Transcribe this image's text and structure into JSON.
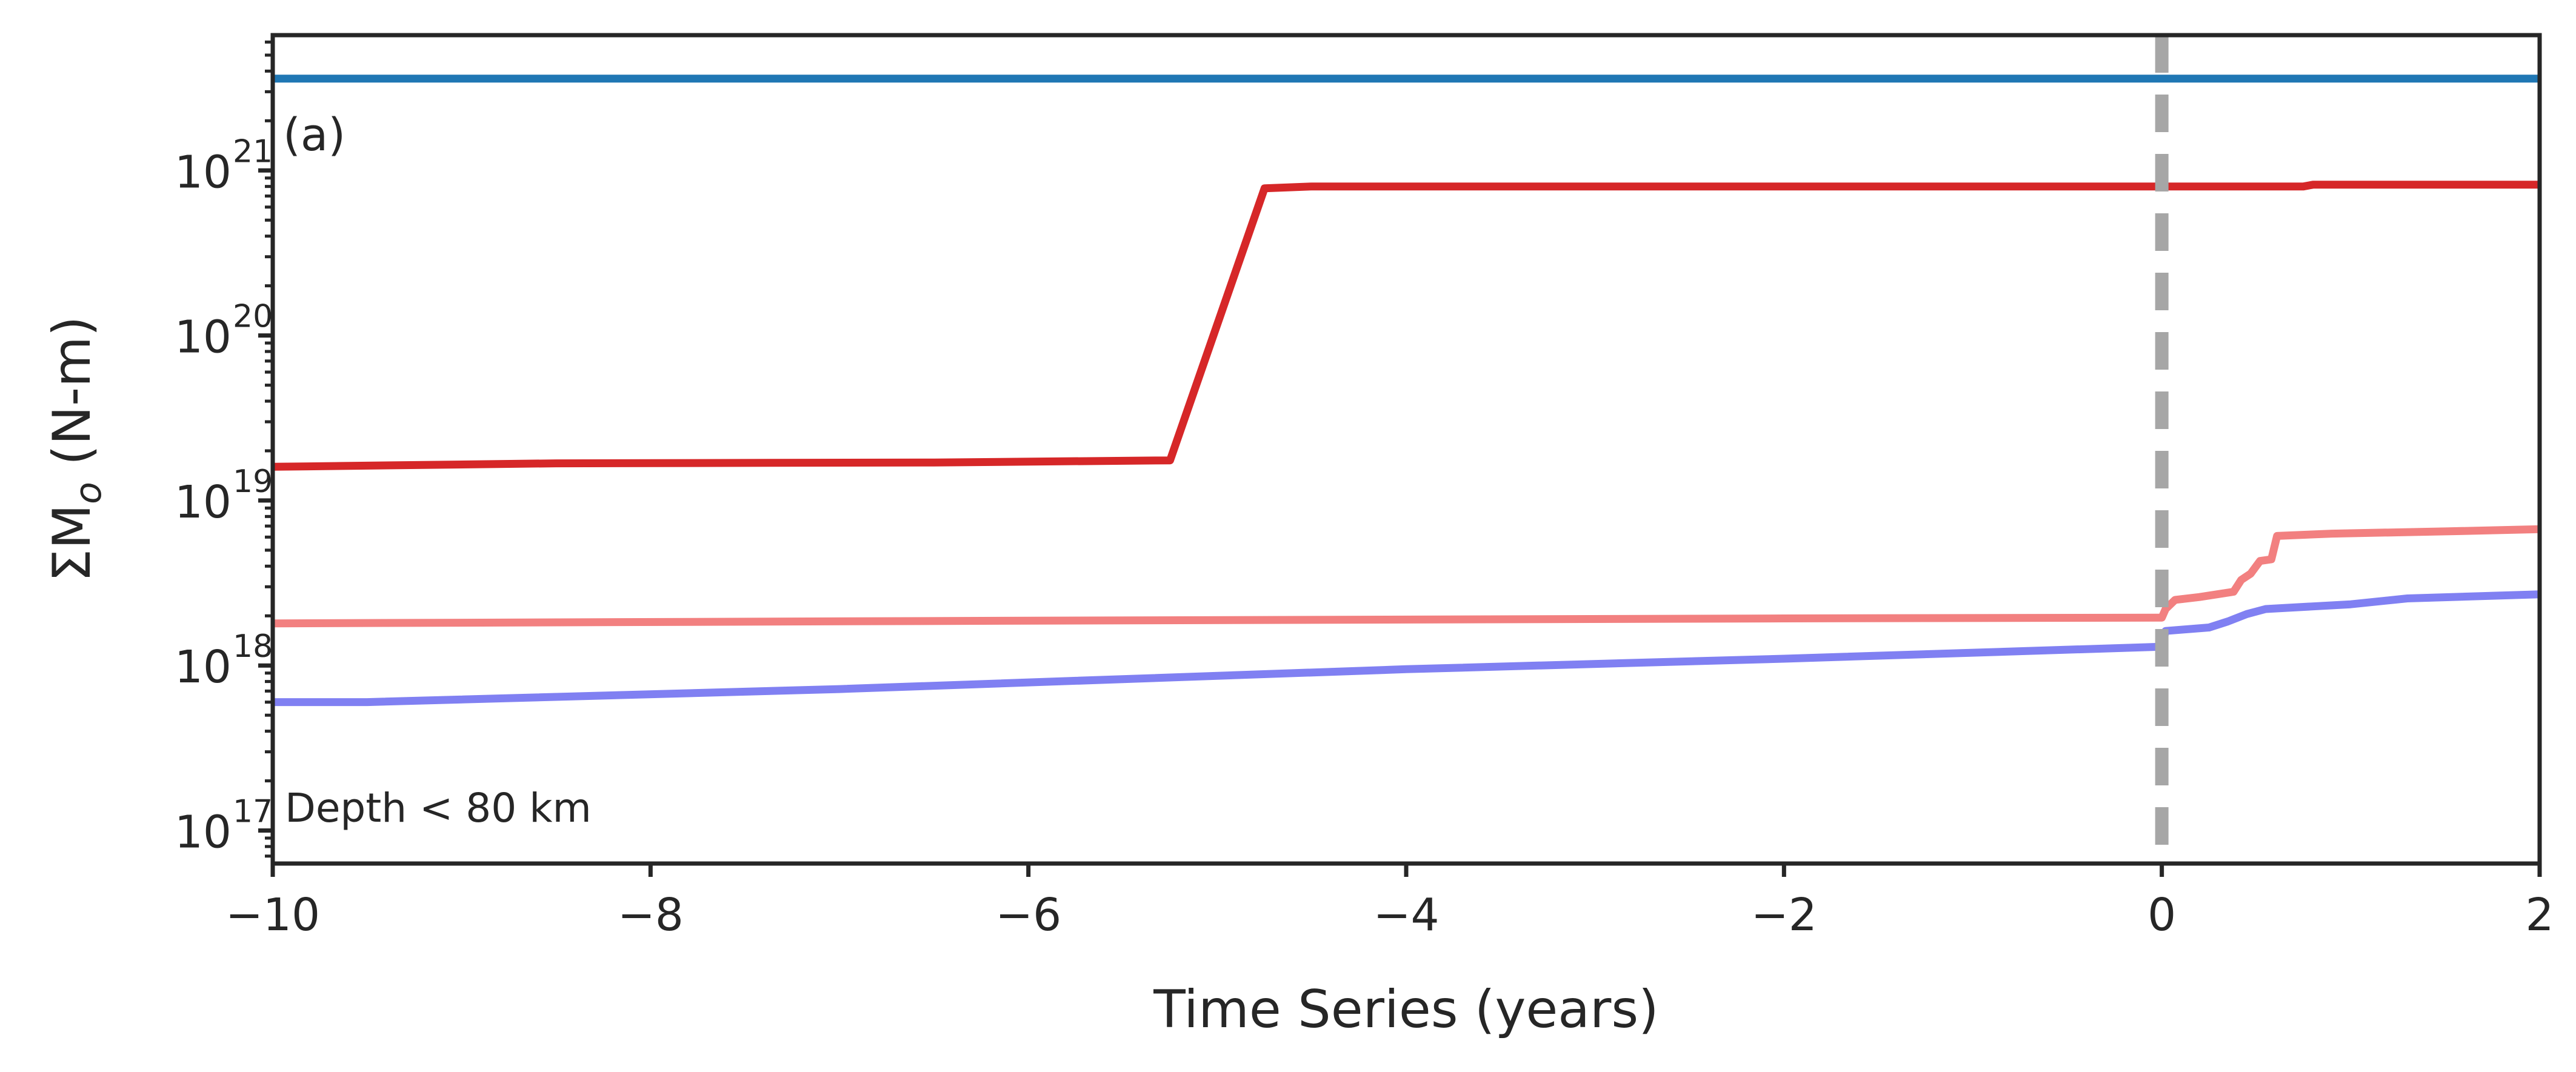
{
  "chart_data": {
    "type": "line",
    "xlabel": "Time Series (years)",
    "ylabel_main": "ΣM",
    "ylabel_sub": "o",
    "ylabel_unit": " (N-m)",
    "xlim": [
      -10,
      2
    ],
    "ylim_log10": [
      16.8,
      21.82
    ],
    "yscale": "log",
    "grid": false,
    "x_ticks": [
      -10,
      -8,
      -6,
      -4,
      -2,
      0,
      2
    ],
    "x_tick_labels": [
      "−10",
      "−8",
      "−6",
      "−4",
      "−2",
      "0",
      "2"
    ],
    "y_tick_exponents": [
      17,
      18,
      19,
      20,
      21
    ],
    "y_tick_base": "10",
    "y_tick_sup_labels": [
      "17",
      "18",
      "19",
      "20",
      "21"
    ],
    "panel_label": "(a)",
    "annotation": "Depth < 80 km",
    "event_line": {
      "x": 0,
      "color": "#a6a6a6",
      "style": "dashed"
    },
    "series": [
      {
        "color": "#1f77b4",
        "points": [
          [
            -10,
            3.6e+21
          ],
          [
            2,
            3.6e+21
          ]
        ]
      },
      {
        "color": "#d62728",
        "points": [
          [
            -10,
            1.6e+19
          ],
          [
            -8.5,
            1.68e+19
          ],
          [
            -6.5,
            1.7e+19
          ],
          [
            -5.25,
            1.75e+19
          ],
          [
            -4.75,
            7.8e+20
          ],
          [
            -4.5,
            8e+20
          ],
          [
            0.75,
            8e+20
          ],
          [
            0.8,
            8.2e+20
          ],
          [
            2,
            8.2e+20
          ]
        ]
      },
      {
        "color": "#f28080",
        "points": [
          [
            -10,
            1.8e+18
          ],
          [
            -6,
            1.87e+18
          ],
          [
            -2,
            1.93e+18
          ],
          [
            0,
            1.95e+18
          ],
          [
            0.02,
            2.2e+18
          ],
          [
            0.07,
            2.5e+18
          ],
          [
            0.2,
            2.6e+18
          ],
          [
            0.38,
            2.8e+18
          ],
          [
            0.42,
            3.3e+18
          ],
          [
            0.47,
            3.6e+18
          ],
          [
            0.52,
            4.3e+18
          ],
          [
            0.58,
            4.4e+18
          ],
          [
            0.61,
            6.1e+18
          ],
          [
            0.9,
            6.3e+18
          ],
          [
            1.5,
            6.5e+18
          ],
          [
            2,
            6.7e+18
          ]
        ]
      },
      {
        "color": "#8080f2",
        "points": [
          [
            -10,
            6e+17
          ],
          [
            -9.5,
            6e+17
          ],
          [
            -7,
            7.2e+17
          ],
          [
            -4,
            9.5e+17
          ],
          [
            -2,
            1.1e+18
          ],
          [
            0,
            1.3e+18
          ],
          [
            0.02,
            1.62e+18
          ],
          [
            0.25,
            1.7e+18
          ],
          [
            0.35,
            1.85e+18
          ],
          [
            0.45,
            2.05e+18
          ],
          [
            0.55,
            2.2e+18
          ],
          [
            1.0,
            2.35e+18
          ],
          [
            1.3,
            2.55e+18
          ],
          [
            2,
            2.7e+18
          ]
        ]
      }
    ]
  }
}
